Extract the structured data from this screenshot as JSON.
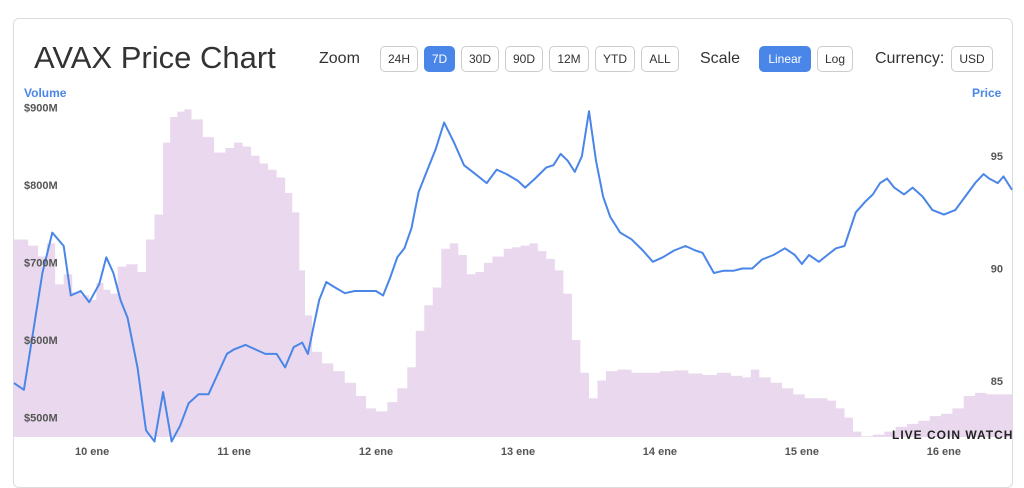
{
  "header": {
    "title": "AVAX Price Chart",
    "zoom_label": "Zoom",
    "zoom_options": [
      "24H",
      "7D",
      "30D",
      "90D",
      "12M",
      "YTD",
      "ALL"
    ],
    "zoom_selected": "7D",
    "scale_label": "Scale",
    "scale_options": [
      "Linear",
      "Log"
    ],
    "scale_selected": "Linear",
    "currency_label": "Currency:",
    "currency_value": "USD"
  },
  "watermark": "LIVE COIN WATCH",
  "colors": {
    "price_line": "#4a86e8",
    "volume_fill": "#ead9ee",
    "accent": "#4a86e8"
  },
  "chart_data": {
    "type": "line",
    "title": "AVAX Price Chart",
    "x_ticks": [
      "10 ene",
      "11 ene",
      "12 ene",
      "13 ene",
      "14 ene",
      "15 ene",
      "16 ene"
    ],
    "x_range_days": [
      9.45,
      16.48
    ],
    "left_axis": {
      "label": "Volume",
      "tick_labels": [
        "$500M",
        "$600M",
        "$700M",
        "$800M",
        "$900M"
      ],
      "tick_values": [
        500,
        600,
        700,
        800,
        900
      ],
      "range": [
        475,
        910
      ]
    },
    "right_axis": {
      "label": "Price",
      "tick_labels": [
        "85",
        "90",
        "95"
      ],
      "tick_values": [
        85,
        90,
        95
      ],
      "range": [
        82.5,
        97.5
      ]
    },
    "grid": false,
    "series": [
      {
        "name": "Price",
        "axis": "right",
        "points": [
          [
            9.45,
            84.9
          ],
          [
            9.52,
            84.6
          ],
          [
            9.58,
            87.0
          ],
          [
            9.65,
            89.8
          ],
          [
            9.72,
            91.6
          ],
          [
            9.8,
            91.0
          ],
          [
            9.85,
            88.8
          ],
          [
            9.92,
            89.0
          ],
          [
            9.98,
            88.5
          ],
          [
            10.05,
            89.3
          ],
          [
            10.1,
            90.5
          ],
          [
            10.15,
            89.8
          ],
          [
            10.2,
            88.6
          ],
          [
            10.25,
            87.8
          ],
          [
            10.32,
            85.6
          ],
          [
            10.38,
            82.8
          ],
          [
            10.44,
            82.3
          ],
          [
            10.5,
            84.5
          ],
          [
            10.56,
            82.3
          ],
          [
            10.62,
            83.0
          ],
          [
            10.68,
            84.0
          ],
          [
            10.75,
            84.4
          ],
          [
            10.82,
            84.4
          ],
          [
            10.9,
            85.5
          ],
          [
            10.95,
            86.2
          ],
          [
            11.0,
            86.4
          ],
          [
            11.08,
            86.6
          ],
          [
            11.15,
            86.4
          ],
          [
            11.22,
            86.2
          ],
          [
            11.3,
            86.2
          ],
          [
            11.36,
            85.6
          ],
          [
            11.42,
            86.5
          ],
          [
            11.48,
            86.7
          ],
          [
            11.52,
            86.2
          ],
          [
            11.56,
            87.4
          ],
          [
            11.6,
            88.6
          ],
          [
            11.65,
            89.4
          ],
          [
            11.7,
            89.2
          ],
          [
            11.78,
            88.9
          ],
          [
            11.85,
            89.0
          ],
          [
            11.92,
            89.0
          ],
          [
            12.0,
            89.0
          ],
          [
            12.05,
            88.8
          ],
          [
            12.1,
            89.6
          ],
          [
            12.15,
            90.5
          ],
          [
            12.2,
            90.9
          ],
          [
            12.25,
            91.8
          ],
          [
            12.3,
            93.4
          ],
          [
            12.35,
            94.2
          ],
          [
            12.42,
            95.3
          ],
          [
            12.48,
            96.5
          ],
          [
            12.55,
            95.6
          ],
          [
            12.62,
            94.6
          ],
          [
            12.7,
            94.2
          ],
          [
            12.78,
            93.8
          ],
          [
            12.85,
            94.4
          ],
          [
            12.92,
            94.2
          ],
          [
            13.0,
            93.9
          ],
          [
            13.05,
            93.6
          ],
          [
            13.12,
            94.0
          ],
          [
            13.2,
            94.5
          ],
          [
            13.25,
            94.6
          ],
          [
            13.3,
            95.1
          ],
          [
            13.35,
            94.8
          ],
          [
            13.4,
            94.3
          ],
          [
            13.45,
            95.0
          ],
          [
            13.5,
            97.0
          ],
          [
            13.55,
            94.8
          ],
          [
            13.6,
            93.2
          ],
          [
            13.65,
            92.3
          ],
          [
            13.72,
            91.6
          ],
          [
            13.8,
            91.3
          ],
          [
            13.88,
            90.8
          ],
          [
            13.95,
            90.3
          ],
          [
            14.02,
            90.5
          ],
          [
            14.1,
            90.8
          ],
          [
            14.18,
            91.0
          ],
          [
            14.25,
            90.8
          ],
          [
            14.3,
            90.7
          ],
          [
            14.38,
            89.8
          ],
          [
            14.45,
            89.9
          ],
          [
            14.52,
            89.9
          ],
          [
            14.58,
            90.0
          ],
          [
            14.65,
            90.0
          ],
          [
            14.72,
            90.4
          ],
          [
            14.8,
            90.6
          ],
          [
            14.88,
            90.9
          ],
          [
            14.95,
            90.6
          ],
          [
            15.0,
            90.2
          ],
          [
            15.05,
            90.6
          ],
          [
            15.12,
            90.3
          ],
          [
            15.18,
            90.6
          ],
          [
            15.24,
            90.9
          ],
          [
            15.3,
            91.0
          ],
          [
            15.38,
            92.5
          ],
          [
            15.45,
            93.0
          ],
          [
            15.5,
            93.3
          ],
          [
            15.55,
            93.8
          ],
          [
            15.6,
            94.0
          ],
          [
            15.65,
            93.6
          ],
          [
            15.72,
            93.3
          ],
          [
            15.78,
            93.6
          ],
          [
            15.85,
            93.2
          ],
          [
            15.92,
            92.6
          ],
          [
            16.0,
            92.4
          ],
          [
            16.08,
            92.6
          ],
          [
            16.15,
            93.2
          ],
          [
            16.22,
            93.8
          ],
          [
            16.28,
            94.2
          ],
          [
            16.32,
            94.0
          ],
          [
            16.38,
            93.8
          ],
          [
            16.42,
            94.1
          ],
          [
            16.48,
            93.5
          ]
        ]
      },
      {
        "name": "Volume",
        "axis": "left",
        "type": "area",
        "points": [
          [
            9.45,
            730
          ],
          [
            9.55,
            722
          ],
          [
            9.62,
            708
          ],
          [
            9.68,
            725
          ],
          [
            9.74,
            672
          ],
          [
            9.8,
            685
          ],
          [
            9.86,
            662
          ],
          [
            9.92,
            658
          ],
          [
            9.98,
            652
          ],
          [
            10.03,
            674
          ],
          [
            10.08,
            665
          ],
          [
            10.13,
            660
          ],
          [
            10.18,
            695
          ],
          [
            10.24,
            698
          ],
          [
            10.32,
            688
          ],
          [
            10.38,
            730
          ],
          [
            10.44,
            762
          ],
          [
            10.5,
            855
          ],
          [
            10.55,
            888
          ],
          [
            10.6,
            895
          ],
          [
            10.65,
            898
          ],
          [
            10.7,
            885
          ],
          [
            10.78,
            862
          ],
          [
            10.86,
            842
          ],
          [
            10.94,
            848
          ],
          [
            11.0,
            855
          ],
          [
            11.06,
            850
          ],
          [
            11.12,
            838
          ],
          [
            11.18,
            828
          ],
          [
            11.24,
            820
          ],
          [
            11.3,
            810
          ],
          [
            11.36,
            790
          ],
          [
            11.41,
            765
          ],
          [
            11.46,
            690
          ],
          [
            11.5,
            632
          ],
          [
            11.55,
            585
          ],
          [
            11.62,
            570
          ],
          [
            11.7,
            560
          ],
          [
            11.78,
            545
          ],
          [
            11.86,
            528
          ],
          [
            11.93,
            512
          ],
          [
            12.0,
            508
          ],
          [
            12.08,
            520
          ],
          [
            12.15,
            538
          ],
          [
            12.22,
            565
          ],
          [
            12.28,
            612
          ],
          [
            12.34,
            645
          ],
          [
            12.4,
            668
          ],
          [
            12.46,
            718
          ],
          [
            12.52,
            725
          ],
          [
            12.58,
            710
          ],
          [
            12.64,
            685
          ],
          [
            12.7,
            688
          ],
          [
            12.76,
            700
          ],
          [
            12.82,
            708
          ],
          [
            12.9,
            718
          ],
          [
            12.96,
            720
          ],
          [
            13.02,
            722
          ],
          [
            13.08,
            725
          ],
          [
            13.14,
            715
          ],
          [
            13.2,
            705
          ],
          [
            13.26,
            690
          ],
          [
            13.32,
            660
          ],
          [
            13.38,
            600
          ],
          [
            13.44,
            558
          ],
          [
            13.5,
            525
          ],
          [
            13.56,
            548
          ],
          [
            13.62,
            560
          ],
          [
            13.7,
            562
          ],
          [
            13.8,
            558
          ],
          [
            13.9,
            558
          ],
          [
            14.0,
            560
          ],
          [
            14.1,
            561
          ],
          [
            14.2,
            557
          ],
          [
            14.3,
            555
          ],
          [
            14.4,
            558
          ],
          [
            14.5,
            554
          ],
          [
            14.58,
            552
          ],
          [
            14.64,
            562
          ],
          [
            14.7,
            552
          ],
          [
            14.78,
            545
          ],
          [
            14.86,
            538
          ],
          [
            14.94,
            530
          ],
          [
            15.02,
            525
          ],
          [
            15.1,
            525
          ],
          [
            15.18,
            522
          ],
          [
            15.24,
            512
          ],
          [
            15.3,
            500
          ],
          [
            15.36,
            482
          ],
          [
            15.42,
            476
          ],
          [
            15.5,
            478
          ],
          [
            15.58,
            482
          ],
          [
            15.66,
            488
          ],
          [
            15.74,
            492
          ],
          [
            15.82,
            496
          ],
          [
            15.9,
            502
          ],
          [
            15.98,
            505
          ],
          [
            16.06,
            512
          ],
          [
            16.14,
            528
          ],
          [
            16.22,
            532
          ],
          [
            16.3,
            530
          ],
          [
            16.38,
            530
          ],
          [
            16.48,
            528
          ]
        ]
      }
    ],
    "legend": "none"
  }
}
